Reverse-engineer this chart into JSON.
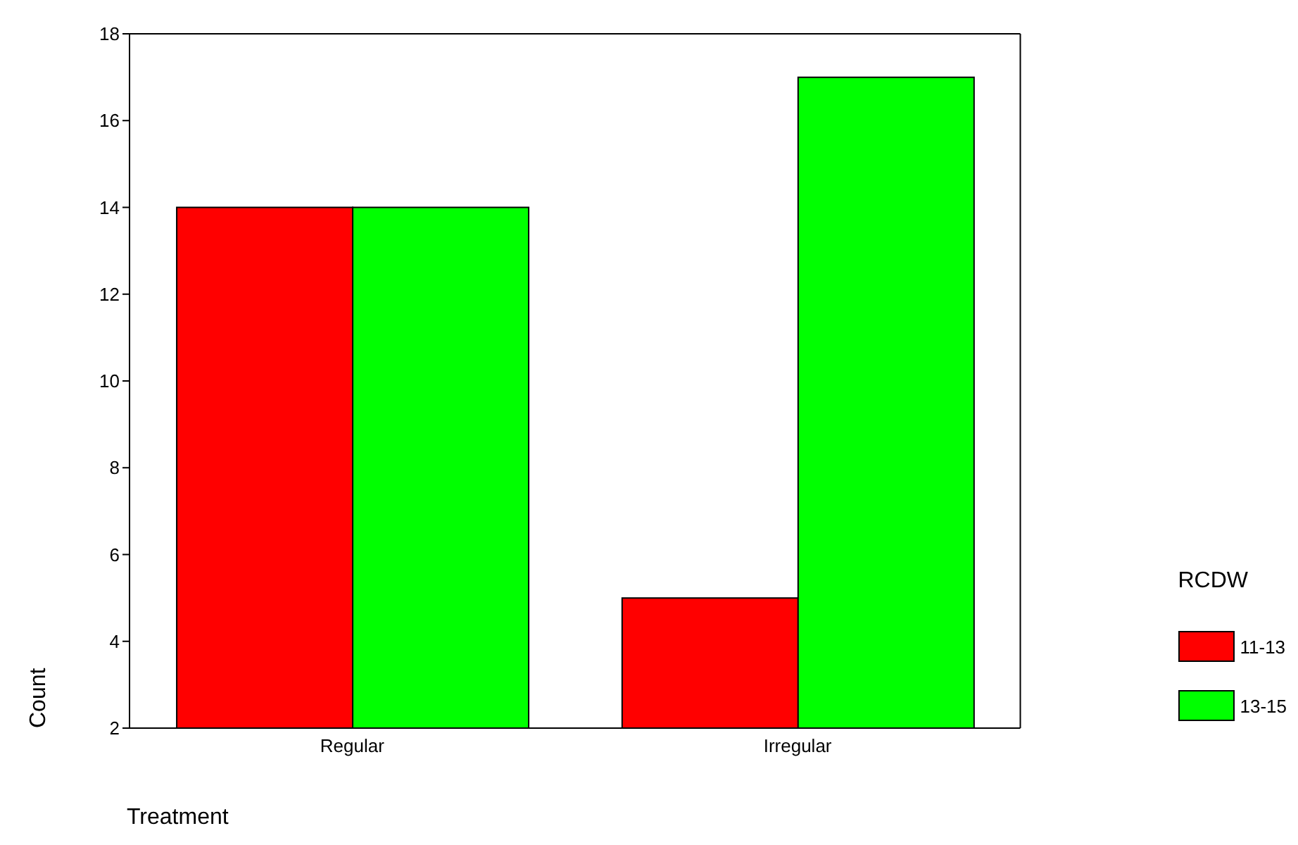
{
  "chart_data": {
    "type": "bar",
    "xlabel": "Treatment",
    "ylabel": "Count",
    "legend_title": "RCDW",
    "categories": [
      "Regular",
      "Irregular"
    ],
    "series": [
      {
        "name": "11-13",
        "color": "#ff0000",
        "values": [
          14,
          5
        ]
      },
      {
        "name": "13-15",
        "color": "#00ff00",
        "values": [
          14,
          17
        ]
      }
    ],
    "ylim": [
      2,
      18
    ],
    "yticks": [
      2,
      4,
      6,
      8,
      10,
      12,
      14,
      16,
      18
    ],
    "grid": false,
    "legend": "bottom right"
  }
}
